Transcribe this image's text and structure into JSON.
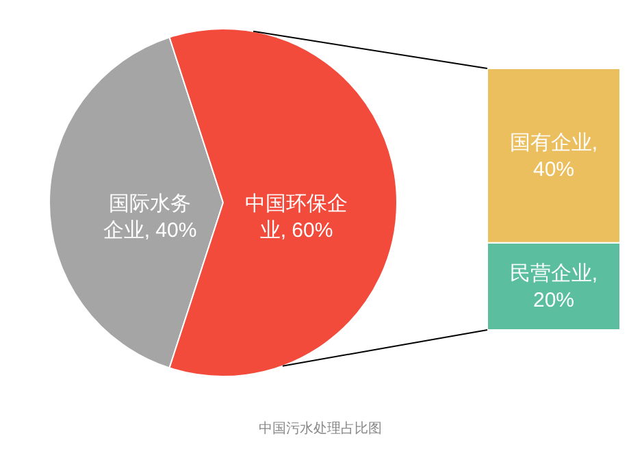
{
  "chart_data": [
    {
      "type": "pie",
      "categories": [
        "国际水务企业",
        "中国环保企业"
      ],
      "values": [
        40,
        60
      ],
      "colors": [
        "#a5a5a5",
        "#f24a3b"
      ],
      "value_labels": [
        "40%",
        "60%"
      ],
      "annotations": [
        "中国污水处理占比图"
      ]
    },
    {
      "type": "bar",
      "stacked": true,
      "categories": [
        null
      ],
      "series": [
        {
          "name": "民营企业,",
          "color": "#5bbf9f",
          "values": [
            20
          ],
          "value_labels": [
            "20%"
          ]
        },
        {
          "name": "国有企业,",
          "color": "#ebbe5e",
          "values": [
            40
          ],
          "value_labels": [
            "40%"
          ]
        }
      ]
    }
  ]
}
